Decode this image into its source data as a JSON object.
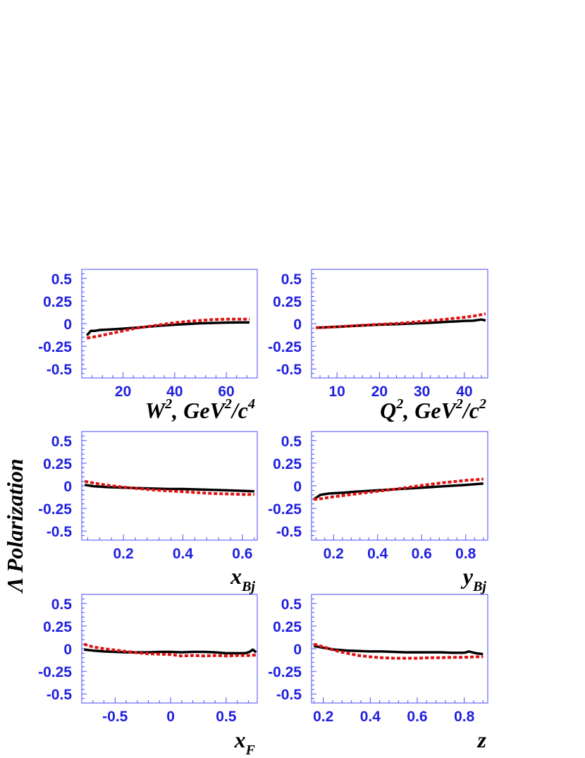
{
  "colors": {
    "frame": "#4a4aff",
    "tick_label": "#1f1fe0",
    "solid_series": "#000000",
    "dashed_series": "#e01010"
  },
  "ylabel": "Λ Polarization",
  "chart_data": [
    {
      "type": "line",
      "xlabel": {
        "base": "W",
        "sup1": "2",
        "rest": ", GeV",
        "sup2": "2",
        "rest2": "/c",
        "sup3": "4"
      },
      "xlim": [
        4,
        72
      ],
      "ylim": [
        -0.6,
        0.6
      ],
      "xticks": [
        20,
        40,
        60
      ],
      "xtick_labels": [
        "20",
        "40",
        "60"
      ],
      "yticks": [
        0.5,
        0.25,
        0,
        -0.25,
        -0.5
      ],
      "ytick_labels": [
        "0.5",
        "0.25",
        "0",
        "-0.25",
        "-0.5"
      ],
      "series": [
        {
          "style": "solid",
          "x": [
            6,
            7.5,
            9,
            11,
            15,
            20,
            25,
            30,
            35,
            40,
            45,
            50,
            55,
            60,
            65,
            69
          ],
          "y": [
            -0.13,
            -0.08,
            -0.08,
            -0.07,
            -0.065,
            -0.055,
            -0.045,
            -0.033,
            -0.022,
            -0.012,
            -0.004,
            0.004,
            0.008,
            0.012,
            0.014,
            0.014
          ]
        },
        {
          "style": "dashed",
          "x": [
            6,
            10,
            15,
            20,
            25,
            30,
            35,
            40,
            45,
            50,
            55,
            60,
            65,
            69
          ],
          "y": [
            -0.16,
            -0.14,
            -0.11,
            -0.08,
            -0.05,
            -0.03,
            -0.01,
            0.01,
            0.025,
            0.035,
            0.045,
            0.05,
            0.05,
            0.05
          ]
        }
      ]
    },
    {
      "type": "line",
      "xlabel": {
        "base": "Q",
        "sup1": "2",
        "rest": ", GeV",
        "sup2": "2",
        "rest2": "/c",
        "sup3": "2"
      },
      "xlim": [
        4,
        45.5
      ],
      "ylim": [
        -0.6,
        0.6
      ],
      "xticks": [
        10,
        20,
        30,
        40
      ],
      "xtick_labels": [
        "10",
        "20",
        "30",
        "40"
      ],
      "yticks": [
        0.5,
        0.25,
        0,
        -0.25,
        -0.5
      ],
      "ytick_labels": [
        "0.5",
        "0.25",
        "0",
        "-0.25",
        "-0.5"
      ],
      "series": [
        {
          "style": "solid",
          "x": [
            5,
            8,
            12,
            16,
            20,
            24,
            28,
            32,
            35,
            38,
            40,
            42,
            44,
            45
          ],
          "y": [
            -0.045,
            -0.04,
            -0.03,
            -0.02,
            -0.012,
            -0.006,
            0.002,
            0.01,
            0.018,
            0.024,
            0.03,
            0.032,
            0.045,
            0.035
          ]
        },
        {
          "style": "dashed",
          "x": [
            5,
            10,
            15,
            20,
            25,
            30,
            35,
            40,
            43,
            45
          ],
          "y": [
            -0.045,
            -0.035,
            -0.02,
            -0.008,
            0.005,
            0.025,
            0.045,
            0.07,
            0.09,
            0.11
          ]
        }
      ]
    },
    {
      "type": "line",
      "xlabel": {
        "base": "x",
        "sub": "Bj"
      },
      "xlim": [
        0.06,
        0.65
      ],
      "ylim": [
        -0.6,
        0.6
      ],
      "xticks": [
        0.2,
        0.4,
        0.6
      ],
      "xtick_labels": [
        "0.2",
        "0.4",
        "0.6"
      ],
      "yticks": [
        0.5,
        0.25,
        0,
        -0.25,
        -0.5
      ],
      "ytick_labels": [
        "0.5",
        "0.25",
        "0",
        "-0.25",
        "-0.5"
      ],
      "series": [
        {
          "style": "solid",
          "x": [
            0.07,
            0.1,
            0.15,
            0.2,
            0.25,
            0.3,
            0.35,
            0.4,
            0.45,
            0.5,
            0.55,
            0.6,
            0.64
          ],
          "y": [
            0.01,
            -0.005,
            -0.015,
            -0.02,
            -0.025,
            -0.03,
            -0.035,
            -0.035,
            -0.04,
            -0.045,
            -0.05,
            -0.055,
            -0.06
          ]
        },
        {
          "style": "dashed",
          "x": [
            0.07,
            0.1,
            0.15,
            0.2,
            0.25,
            0.3,
            0.35,
            0.4,
            0.45,
            0.5,
            0.55,
            0.6,
            0.64
          ],
          "y": [
            0.05,
            0.03,
            0.005,
            -0.015,
            -0.03,
            -0.045,
            -0.055,
            -0.065,
            -0.075,
            -0.085,
            -0.09,
            -0.095,
            -0.095
          ]
        }
      ]
    },
    {
      "type": "line",
      "xlabel": {
        "base": "y",
        "sub": "Bj"
      },
      "xlim": [
        0.1,
        0.9
      ],
      "ylim": [
        -0.6,
        0.6
      ],
      "xticks": [
        0.2,
        0.4,
        0.6,
        0.8
      ],
      "xtick_labels": [
        "0.2",
        "0.4",
        "0.6",
        "0.8"
      ],
      "yticks": [
        0.5,
        0.25,
        0,
        -0.25,
        -0.5
      ],
      "ytick_labels": [
        "0.5",
        "0.25",
        "0",
        "-0.25",
        "-0.5"
      ],
      "series": [
        {
          "style": "solid",
          "x": [
            0.11,
            0.14,
            0.18,
            0.25,
            0.3,
            0.4,
            0.5,
            0.6,
            0.7,
            0.8,
            0.88
          ],
          "y": [
            -0.15,
            -0.1,
            -0.085,
            -0.075,
            -0.065,
            -0.05,
            -0.035,
            -0.02,
            -0.005,
            0.01,
            0.025
          ]
        },
        {
          "style": "dashed",
          "x": [
            0.11,
            0.15,
            0.2,
            0.3,
            0.4,
            0.5,
            0.6,
            0.7,
            0.8,
            0.88
          ],
          "y": [
            -0.15,
            -0.14,
            -0.12,
            -0.09,
            -0.06,
            -0.03,
            0.005,
            0.035,
            0.06,
            0.075
          ]
        }
      ]
    },
    {
      "type": "line",
      "xlabel": {
        "base": "x",
        "sub": "F"
      },
      "xlim": [
        -0.8,
        0.78
      ],
      "ylim": [
        -0.6,
        0.6
      ],
      "xticks": [
        -0.5,
        0,
        0.5
      ],
      "xtick_labels": [
        "-0.5",
        "0",
        "0.5"
      ],
      "yticks": [
        0.5,
        0.25,
        0,
        -0.25,
        -0.5
      ],
      "ytick_labels": [
        "0.5",
        "0.25",
        "0",
        "-0.25",
        "-0.5"
      ],
      "series": [
        {
          "style": "solid",
          "x": [
            -0.78,
            -0.7,
            -0.6,
            -0.5,
            -0.4,
            -0.3,
            -0.2,
            -0.1,
            0,
            0.1,
            0.2,
            0.3,
            0.4,
            0.5,
            0.6,
            0.67,
            0.71,
            0.74,
            0.77
          ],
          "y": [
            -0.01,
            -0.02,
            -0.03,
            -0.035,
            -0.04,
            -0.04,
            -0.04,
            -0.035,
            -0.035,
            -0.04,
            -0.035,
            -0.035,
            -0.04,
            -0.05,
            -0.05,
            -0.05,
            -0.035,
            -0.01,
            -0.04
          ]
        },
        {
          "style": "dashed",
          "x": [
            -0.78,
            -0.7,
            -0.6,
            -0.5,
            -0.4,
            -0.3,
            -0.2,
            -0.1,
            0,
            0.1,
            0.2,
            0.3,
            0.4,
            0.5,
            0.6,
            0.7,
            0.77
          ],
          "y": [
            0.05,
            0.02,
            0.0,
            -0.015,
            -0.03,
            -0.045,
            -0.055,
            -0.06,
            -0.065,
            -0.08,
            -0.075,
            -0.08,
            -0.075,
            -0.08,
            -0.075,
            -0.075,
            -0.07
          ]
        }
      ]
    },
    {
      "type": "line",
      "xlabel": {
        "base": "z"
      },
      "xlim": [
        0.15,
        0.9
      ],
      "ylim": [
        -0.6,
        0.6
      ],
      "xticks": [
        0.2,
        0.4,
        0.6,
        0.8
      ],
      "xtick_labels": [
        "0.2",
        "0.4",
        "0.6",
        "0.8"
      ],
      "yticks": [
        0.5,
        0.25,
        0,
        -0.25,
        -0.5
      ],
      "ytick_labels": [
        "0.5",
        "0.25",
        "0",
        "-0.25",
        "-0.5"
      ],
      "series": [
        {
          "style": "solid",
          "x": [
            0.16,
            0.2,
            0.25,
            0.3,
            0.35,
            0.4,
            0.45,
            0.5,
            0.55,
            0.6,
            0.65,
            0.7,
            0.75,
            0.8,
            0.82,
            0.85,
            0.88
          ],
          "y": [
            0.03,
            0.01,
            -0.01,
            -0.02,
            -0.025,
            -0.03,
            -0.03,
            -0.035,
            -0.04,
            -0.04,
            -0.04,
            -0.04,
            -0.045,
            -0.045,
            -0.03,
            -0.05,
            -0.06
          ]
        },
        {
          "style": "dashed",
          "x": [
            0.16,
            0.2,
            0.25,
            0.3,
            0.35,
            0.4,
            0.45,
            0.5,
            0.55,
            0.6,
            0.65,
            0.7,
            0.75,
            0.8,
            0.85,
            0.88
          ],
          "y": [
            0.05,
            0.02,
            -0.02,
            -0.05,
            -0.075,
            -0.09,
            -0.1,
            -0.105,
            -0.105,
            -0.105,
            -0.1,
            -0.1,
            -0.095,
            -0.095,
            -0.09,
            -0.09
          ]
        }
      ]
    }
  ]
}
